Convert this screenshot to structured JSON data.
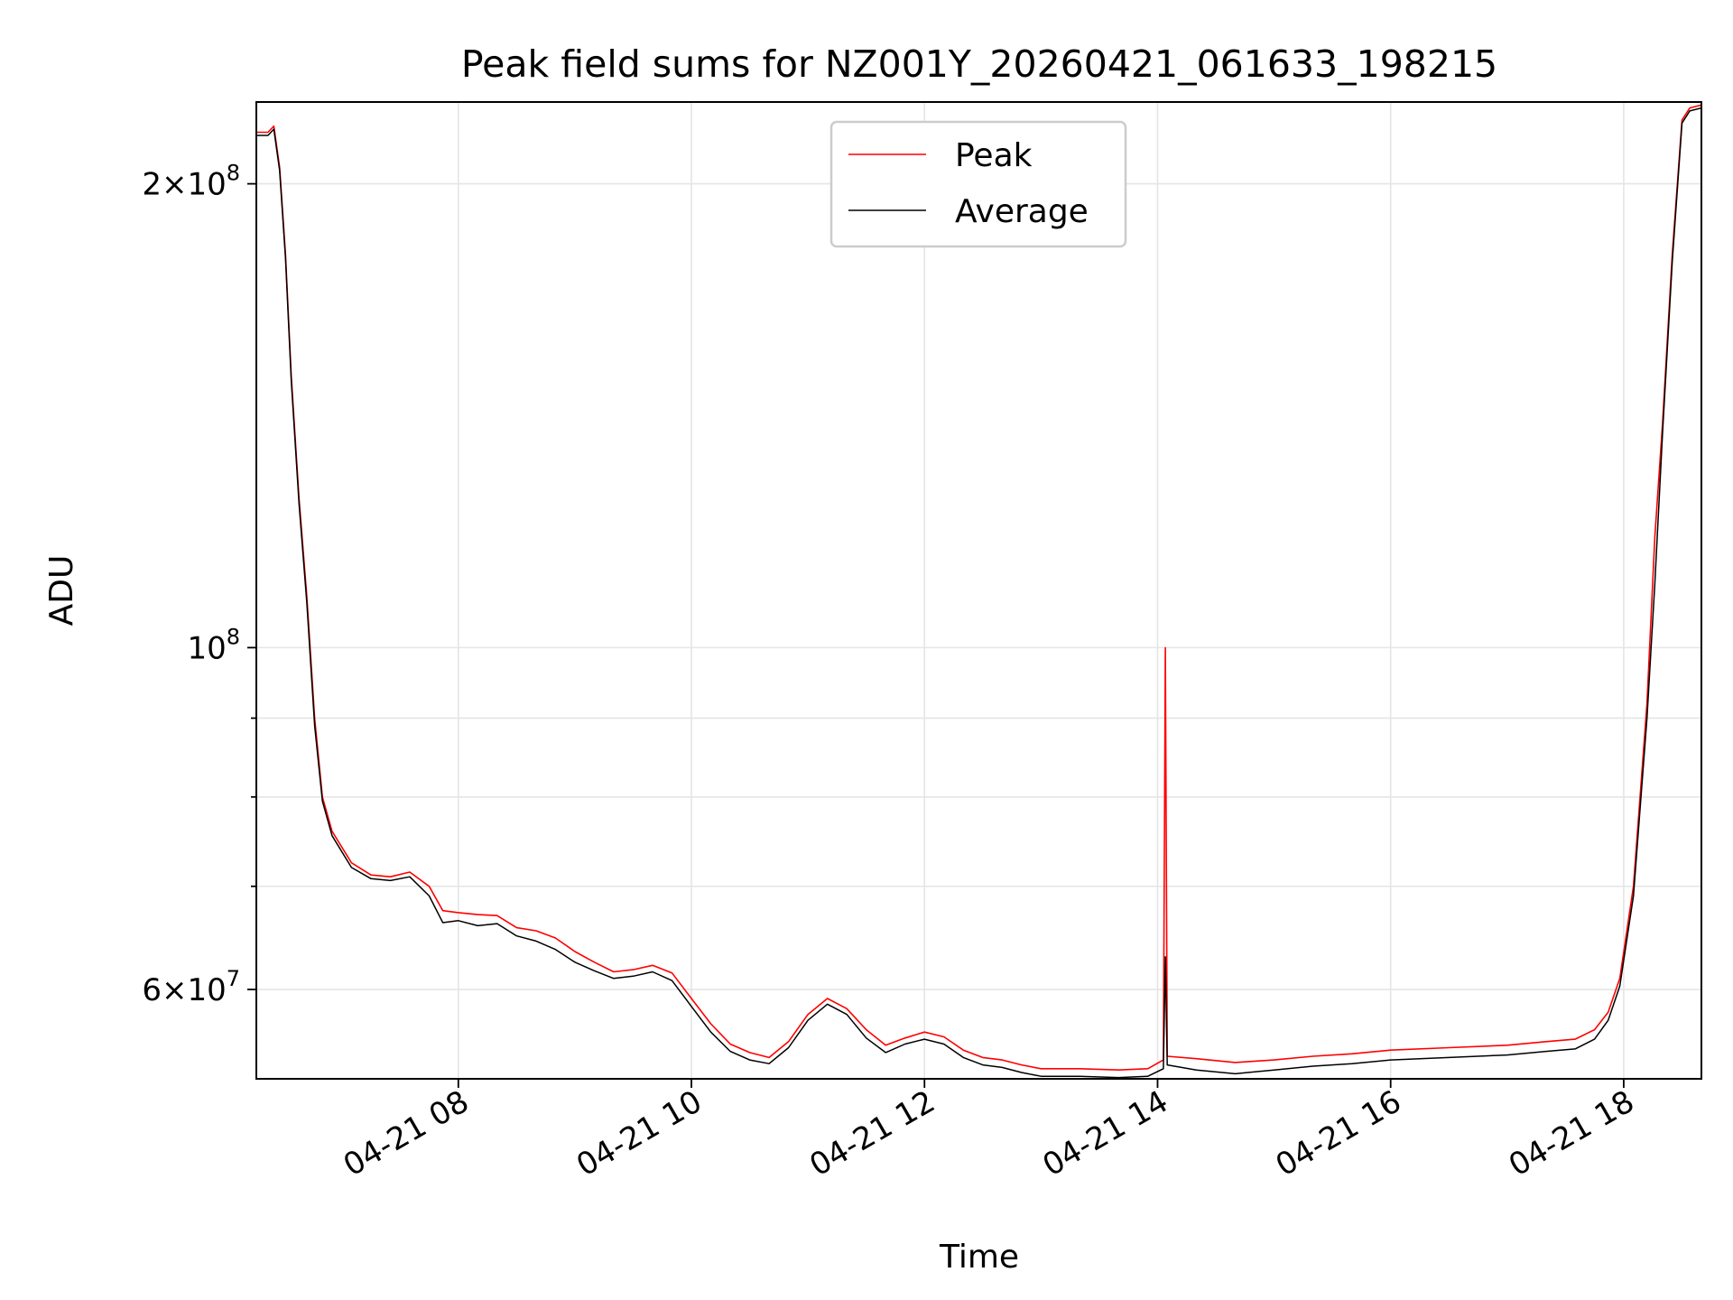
{
  "chart_data": {
    "type": "line",
    "title": "Peak field sums for NZ001Y_20260421_061633_198215",
    "xlabel": "Time",
    "ylabel": "ADU",
    "x_scale": "time",
    "y_scale": "log",
    "xlim": [
      "2026-04-21 06:16",
      "2026-04-21 18:40"
    ],
    "ylim": [
      52500000,
      226000000
    ],
    "grid": true,
    "legend_position": "upper center",
    "x_ticks": [
      {
        "t": "2026-04-21 08:00",
        "label": "04-21 08"
      },
      {
        "t": "2026-04-21 10:00",
        "label": "04-21 10"
      },
      {
        "t": "2026-04-21 12:00",
        "label": "04-21 12"
      },
      {
        "t": "2026-04-21 14:00",
        "label": "04-21 14"
      },
      {
        "t": "2026-04-21 16:00",
        "label": "04-21 16"
      },
      {
        "t": "2026-04-21 18:00",
        "label": "04-21 18"
      }
    ],
    "y_major_ticks": [
      {
        "value": 60000000,
        "mantissa": "6",
        "exponent": "7"
      },
      {
        "value": 100000000,
        "mantissa": "",
        "exponent": "8"
      },
      {
        "value": 200000000,
        "mantissa": "2",
        "exponent": "8"
      }
    ],
    "y_minor_ticks": [
      70000000,
      80000000,
      90000000
    ],
    "y_tick_base": "10",
    "y_tick_times": "×",
    "series": [
      {
        "name": "Peak",
        "color": "#ff0000",
        "points": [
          [
            "2026-04-21 06:16",
            216000000
          ],
          [
            "2026-04-21 06:22",
            216000000
          ],
          [
            "2026-04-21 06:25",
            218000000
          ],
          [
            "2026-04-21 06:28",
            205000000
          ],
          [
            "2026-04-21 06:31",
            180000000
          ],
          [
            "2026-04-21 06:34",
            150000000
          ],
          [
            "2026-04-21 06:38",
            125000000
          ],
          [
            "2026-04-21 06:42",
            108000000
          ],
          [
            "2026-04-21 06:46",
            90000000
          ],
          [
            "2026-04-21 06:50",
            80000000
          ],
          [
            "2026-04-21 06:55",
            76000000
          ],
          [
            "2026-04-21 07:05",
            72500000
          ],
          [
            "2026-04-21 07:15",
            71200000
          ],
          [
            "2026-04-21 07:25",
            71000000
          ],
          [
            "2026-04-21 07:35",
            71500000
          ],
          [
            "2026-04-21 07:45",
            70000000
          ],
          [
            "2026-04-21 07:52",
            67500000
          ],
          [
            "2026-04-21 08:00",
            67300000
          ],
          [
            "2026-04-21 08:10",
            67100000
          ],
          [
            "2026-04-21 08:20",
            67000000
          ],
          [
            "2026-04-21 08:30",
            65800000
          ],
          [
            "2026-04-21 08:40",
            65500000
          ],
          [
            "2026-04-21 08:50",
            64800000
          ],
          [
            "2026-04-21 09:00",
            63500000
          ],
          [
            "2026-04-21 09:10",
            62500000
          ],
          [
            "2026-04-21 09:20",
            61600000
          ],
          [
            "2026-04-21 09:30",
            61800000
          ],
          [
            "2026-04-21 09:40",
            62200000
          ],
          [
            "2026-04-21 09:50",
            61500000
          ],
          [
            "2026-04-21 10:00",
            59200000
          ],
          [
            "2026-04-21 10:10",
            57000000
          ],
          [
            "2026-04-21 10:20",
            55300000
          ],
          [
            "2026-04-21 10:30",
            54600000
          ],
          [
            "2026-04-21 10:40",
            54200000
          ],
          [
            "2026-04-21 10:50",
            55500000
          ],
          [
            "2026-04-21 11:00",
            57800000
          ],
          [
            "2026-04-21 11:10",
            59200000
          ],
          [
            "2026-04-21 11:20",
            58300000
          ],
          [
            "2026-04-21 11:30",
            56500000
          ],
          [
            "2026-04-21 11:40",
            55200000
          ],
          [
            "2026-04-21 11:50",
            55800000
          ],
          [
            "2026-04-21 12:00",
            56300000
          ],
          [
            "2026-04-21 12:10",
            55900000
          ],
          [
            "2026-04-21 12:20",
            54800000
          ],
          [
            "2026-04-21 12:30",
            54200000
          ],
          [
            "2026-04-21 12:40",
            54000000
          ],
          [
            "2026-04-21 12:50",
            53600000
          ],
          [
            "2026-04-21 13:00",
            53300000
          ],
          [
            "2026-04-21 13:20",
            53300000
          ],
          [
            "2026-04-21 13:40",
            53200000
          ],
          [
            "2026-04-21 13:55",
            53300000
          ],
          [
            "2026-04-21 14:03",
            54000000
          ],
          [
            "2026-04-21 14:04",
            100000000
          ],
          [
            "2026-04-21 14:05",
            54300000
          ],
          [
            "2026-04-21 14:20",
            54100000
          ],
          [
            "2026-04-21 14:40",
            53800000
          ],
          [
            "2026-04-21 15:00",
            54000000
          ],
          [
            "2026-04-21 15:20",
            54300000
          ],
          [
            "2026-04-21 15:40",
            54500000
          ],
          [
            "2026-04-21 16:00",
            54800000
          ],
          [
            "2026-04-21 16:30",
            55000000
          ],
          [
            "2026-04-21 17:00",
            55200000
          ],
          [
            "2026-04-21 17:20",
            55500000
          ],
          [
            "2026-04-21 17:35",
            55700000
          ],
          [
            "2026-04-21 17:45",
            56500000
          ],
          [
            "2026-04-21 17:52",
            58000000
          ],
          [
            "2026-04-21 17:58",
            61000000
          ],
          [
            "2026-04-21 18:05",
            70000000
          ],
          [
            "2026-04-21 18:12",
            92000000
          ],
          [
            "2026-04-21 18:16",
            118000000
          ],
          [
            "2026-04-21 18:20",
            140000000
          ],
          [
            "2026-04-21 18:25",
            180000000
          ],
          [
            "2026-04-21 18:30",
            220000000
          ],
          [
            "2026-04-21 18:34",
            224000000
          ],
          [
            "2026-04-21 18:40",
            225000000
          ]
        ]
      },
      {
        "name": "Average",
        "color": "#000000",
        "points": [
          [
            "2026-04-21 06:16",
            215000000
          ],
          [
            "2026-04-21 06:22",
            215000000
          ],
          [
            "2026-04-21 06:25",
            217000000
          ],
          [
            "2026-04-21 06:28",
            204000000
          ],
          [
            "2026-04-21 06:31",
            179000000
          ],
          [
            "2026-04-21 06:34",
            149000000
          ],
          [
            "2026-04-21 06:38",
            124000000
          ],
          [
            "2026-04-21 06:42",
            107000000
          ],
          [
            "2026-04-21 06:46",
            89000000
          ],
          [
            "2026-04-21 06:50",
            79500000
          ],
          [
            "2026-04-21 06:55",
            75500000
          ],
          [
            "2026-04-21 07:05",
            72000000
          ],
          [
            "2026-04-21 07:15",
            70800000
          ],
          [
            "2026-04-21 07:25",
            70600000
          ],
          [
            "2026-04-21 07:35",
            71000000
          ],
          [
            "2026-04-21 07:45",
            69000000
          ],
          [
            "2026-04-21 07:52",
            66300000
          ],
          [
            "2026-04-21 08:00",
            66500000
          ],
          [
            "2026-04-21 08:10",
            66000000
          ],
          [
            "2026-04-21 08:20",
            66200000
          ],
          [
            "2026-04-21 08:30",
            65000000
          ],
          [
            "2026-04-21 08:40",
            64500000
          ],
          [
            "2026-04-21 08:50",
            63700000
          ],
          [
            "2026-04-21 09:00",
            62500000
          ],
          [
            "2026-04-21 09:10",
            61700000
          ],
          [
            "2026-04-21 09:20",
            61000000
          ],
          [
            "2026-04-21 09:30",
            61200000
          ],
          [
            "2026-04-21 09:40",
            61600000
          ],
          [
            "2026-04-21 09:50",
            60800000
          ],
          [
            "2026-04-21 10:00",
            58500000
          ],
          [
            "2026-04-21 10:10",
            56300000
          ],
          [
            "2026-04-21 10:20",
            54700000
          ],
          [
            "2026-04-21 10:30",
            54000000
          ],
          [
            "2026-04-21 10:40",
            53700000
          ],
          [
            "2026-04-21 10:50",
            55000000
          ],
          [
            "2026-04-21 11:00",
            57300000
          ],
          [
            "2026-04-21 11:10",
            58700000
          ],
          [
            "2026-04-21 11:20",
            57800000
          ],
          [
            "2026-04-21 11:30",
            55800000
          ],
          [
            "2026-04-21 11:40",
            54600000
          ],
          [
            "2026-04-21 11:50",
            55300000
          ],
          [
            "2026-04-21 12:00",
            55700000
          ],
          [
            "2026-04-21 12:10",
            55300000
          ],
          [
            "2026-04-21 12:20",
            54200000
          ],
          [
            "2026-04-21 12:30",
            53600000
          ],
          [
            "2026-04-21 12:40",
            53400000
          ],
          [
            "2026-04-21 12:50",
            53000000
          ],
          [
            "2026-04-21 13:00",
            52700000
          ],
          [
            "2026-04-21 13:20",
            52700000
          ],
          [
            "2026-04-21 13:40",
            52600000
          ],
          [
            "2026-04-21 13:55",
            52700000
          ],
          [
            "2026-04-21 14:03",
            53300000
          ],
          [
            "2026-04-21 14:04",
            63000000
          ],
          [
            "2026-04-21 14:05",
            53600000
          ],
          [
            "2026-04-21 14:20",
            53200000
          ],
          [
            "2026-04-21 14:40",
            52900000
          ],
          [
            "2026-04-21 15:00",
            53200000
          ],
          [
            "2026-04-21 15:20",
            53500000
          ],
          [
            "2026-04-21 15:40",
            53700000
          ],
          [
            "2026-04-21 16:00",
            54000000
          ],
          [
            "2026-04-21 16:30",
            54200000
          ],
          [
            "2026-04-21 17:00",
            54400000
          ],
          [
            "2026-04-21 17:20",
            54700000
          ],
          [
            "2026-04-21 17:35",
            54900000
          ],
          [
            "2026-04-21 17:45",
            55700000
          ],
          [
            "2026-04-21 17:52",
            57300000
          ],
          [
            "2026-04-21 17:58",
            60300000
          ],
          [
            "2026-04-21 18:05",
            69000000
          ],
          [
            "2026-04-21 18:12",
            90000000
          ],
          [
            "2026-04-21 18:16",
            110000000
          ],
          [
            "2026-04-21 18:20",
            138000000
          ],
          [
            "2026-04-21 18:25",
            178000000
          ],
          [
            "2026-04-21 18:30",
            219000000
          ],
          [
            "2026-04-21 18:34",
            223000000
          ],
          [
            "2026-04-21 18:40",
            224000000
          ]
        ]
      }
    ]
  }
}
